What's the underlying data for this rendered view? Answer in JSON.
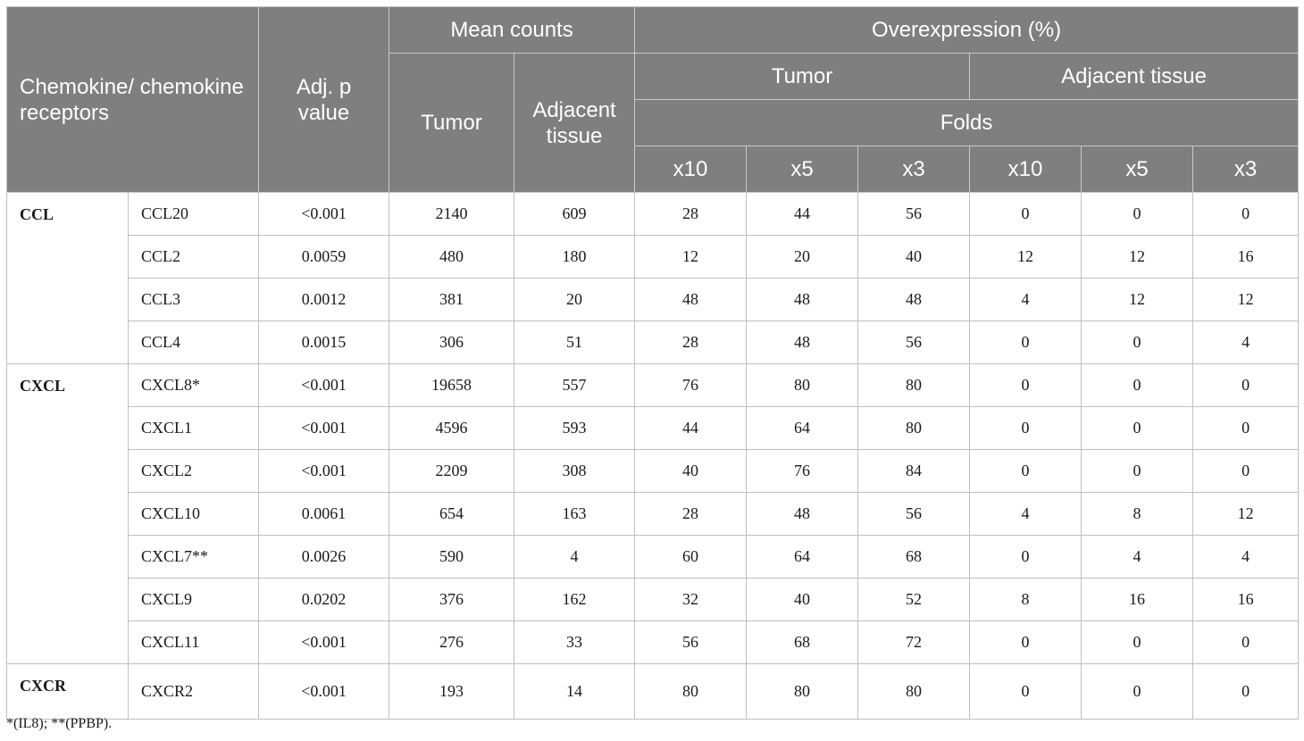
{
  "header": {
    "row_label": "Chemokine/ chemokine receptors",
    "adj_p": "Adj. p value",
    "mean_counts": "Mean counts",
    "overexpression": "Overexpression (%)",
    "tumor": "Tumor",
    "adjacent_tissue_mean": "Adjacent tissue",
    "adjacent_tissue_over": "Adjacent tissue",
    "tumor_over": "Tumor",
    "folds": "Folds",
    "fold_labels": [
      "x10",
      "x5",
      "x3",
      "x10",
      "x5",
      "x3"
    ]
  },
  "groups": [
    {
      "name": "CCL",
      "rows": [
        {
          "gene": "CCL20",
          "p": "<0.001",
          "tumor": "2140",
          "adjacent": "609",
          "t10": "28",
          "t5": "44",
          "t3": "56",
          "a10": "0",
          "a5": "0",
          "a3": "0"
        },
        {
          "gene": "CCL2",
          "p": "0.0059",
          "tumor": "480",
          "adjacent": "180",
          "t10": "12",
          "t5": "20",
          "t3": "40",
          "a10": "12",
          "a5": "12",
          "a3": "16"
        },
        {
          "gene": "CCL3",
          "p": "0.0012",
          "tumor": "381",
          "adjacent": "20",
          "t10": "48",
          "t5": "48",
          "t3": "48",
          "a10": "4",
          "a5": "12",
          "a3": "12"
        },
        {
          "gene": "CCL4",
          "p": "0.0015",
          "tumor": "306",
          "adjacent": "51",
          "t10": "28",
          "t5": "48",
          "t3": "56",
          "a10": "0",
          "a5": "0",
          "a3": "4"
        }
      ]
    },
    {
      "name": "CXCL",
      "rows": [
        {
          "gene": "CXCL8*",
          "p": "<0.001",
          "tumor": "19658",
          "adjacent": "557",
          "t10": "76",
          "t5": "80",
          "t3": "80",
          "a10": "0",
          "a5": "0",
          "a3": "0"
        },
        {
          "gene": "CXCL1",
          "p": "<0.001",
          "tumor": "4596",
          "adjacent": "593",
          "t10": "44",
          "t5": "64",
          "t3": "80",
          "a10": "0",
          "a5": "0",
          "a3": "0"
        },
        {
          "gene": "CXCL2",
          "p": "<0.001",
          "tumor": "2209",
          "adjacent": "308",
          "t10": "40",
          "t5": "76",
          "t3": "84",
          "a10": "0",
          "a5": "0",
          "a3": "0"
        },
        {
          "gene": "CXCL10",
          "p": "0.0061",
          "tumor": "654",
          "adjacent": "163",
          "t10": "28",
          "t5": "48",
          "t3": "56",
          "a10": "4",
          "a5": "8",
          "a3": "12"
        },
        {
          "gene": "CXCL7**",
          "p": "0.0026",
          "tumor": "590",
          "adjacent": "4",
          "t10": "60",
          "t5": "64",
          "t3": "68",
          "a10": "0",
          "a5": "4",
          "a3": "4"
        },
        {
          "gene": "CXCL9",
          "p": "0.0202",
          "tumor": "376",
          "adjacent": "162",
          "t10": "32",
          "t5": "40",
          "t3": "52",
          "a10": "8",
          "a5": "16",
          "a3": "16"
        },
        {
          "gene": "CXCL11",
          "p": "<0.001",
          "tumor": "276",
          "adjacent": "33",
          "t10": "56",
          "t5": "68",
          "t3": "72",
          "a10": "0",
          "a5": "0",
          "a3": "0"
        }
      ]
    },
    {
      "name": "CXCR",
      "rows": [
        {
          "gene": "CXCR2",
          "p": "<0.001",
          "tumor": "193",
          "adjacent": "14",
          "t10": "80",
          "t5": "80",
          "t3": "80",
          "a10": "0",
          "a5": "0",
          "a3": "0"
        }
      ]
    }
  ],
  "footnote": "*(IL8); **(PPBP)."
}
